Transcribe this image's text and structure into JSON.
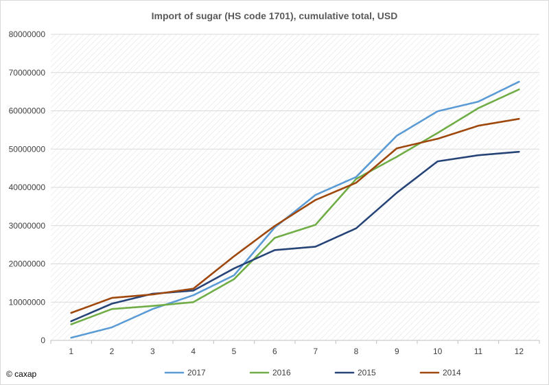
{
  "credit": "© caxap",
  "chart_data": {
    "type": "line",
    "title": "Import of sugar (HS code 1701), cumulative total, USD",
    "xlabel": "",
    "ylabel": "",
    "categories": [
      "1",
      "2",
      "3",
      "4",
      "5",
      "6",
      "7",
      "8",
      "9",
      "10",
      "11",
      "12"
    ],
    "ylim": [
      0,
      80000000
    ],
    "yticks": [
      0,
      10000000,
      20000000,
      30000000,
      40000000,
      50000000,
      60000000,
      70000000,
      80000000
    ],
    "ytick_labels": [
      "0",
      "10000000",
      "20000000",
      "30000000",
      "40000000",
      "50000000",
      "60000000",
      "70000000",
      "80000000"
    ],
    "grid": true,
    "legend_position": "bottom",
    "series": [
      {
        "name": "2017",
        "color": "#5b9bd5",
        "values": [
          700000,
          3400000,
          8200000,
          11800000,
          17000000,
          29500000,
          38000000,
          42700000,
          53500000,
          59900000,
          62400000,
          67600000
        ]
      },
      {
        "name": "2016",
        "color": "#70ad47",
        "values": [
          4200000,
          8200000,
          9000000,
          10000000,
          16000000,
          26800000,
          30200000,
          42200000,
          48000000,
          54200000,
          60700000,
          65600000
        ]
      },
      {
        "name": "2015",
        "color": "#264478",
        "values": [
          5000000,
          9600000,
          12200000,
          13000000,
          18800000,
          23600000,
          24500000,
          29300000,
          38600000,
          46800000,
          48400000,
          49300000
        ]
      },
      {
        "name": "2014",
        "color": "#9e480e",
        "values": [
          7200000,
          11100000,
          12000000,
          13500000,
          22000000,
          29900000,
          36700000,
          41200000,
          50200000,
          52700000,
          56100000,
          57900000
        ]
      }
    ]
  }
}
